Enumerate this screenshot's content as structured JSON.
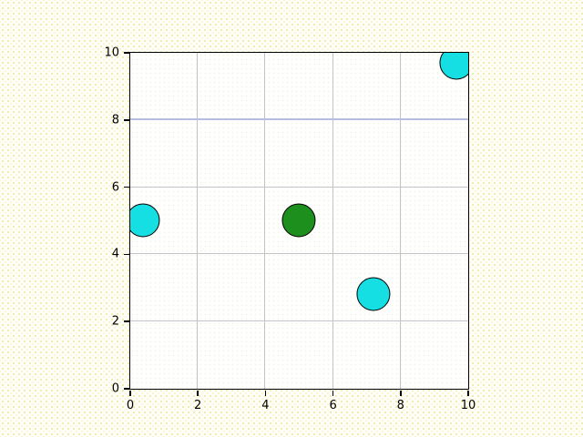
{
  "figure": {
    "background_color": "#fbfbe9",
    "axes_background_color": "#fffffe",
    "spine_color": "#000000",
    "grid_color": "#c3c3c8",
    "tick_label_color": "#000000"
  },
  "chart_data": {
    "type": "scatter",
    "title": "",
    "xlabel": "",
    "ylabel": "",
    "xlim": [
      0,
      10
    ],
    "ylim": [
      0,
      10
    ],
    "xticks": [
      "0",
      "2",
      "4",
      "6",
      "8",
      "10"
    ],
    "yticks": [
      "0",
      "2",
      "4",
      "6",
      "8",
      "10"
    ],
    "xtick_values": [
      0,
      2,
      4,
      6,
      8,
      10
    ],
    "ytick_values": [
      0,
      2,
      4,
      6,
      8,
      10
    ],
    "grid": true,
    "legend": false,
    "reference_line": {
      "axis": "y",
      "value": 8,
      "color": "#b9bce2",
      "width": 2
    },
    "point_radius_data_units": 0.5,
    "points": [
      {
        "x": 0.4,
        "y": 5.0,
        "fill": "#15dfe2",
        "edge": "#000000",
        "label": "cyan-circle"
      },
      {
        "x": 5.0,
        "y": 5.0,
        "fill": "#1d8f1d",
        "edge": "#000000",
        "label": "green-circle"
      },
      {
        "x": 7.2,
        "y": 2.8,
        "fill": "#15dfe2",
        "edge": "#000000",
        "label": "cyan-circle"
      },
      {
        "x": 9.65,
        "y": 9.7,
        "fill": "#15dfe2",
        "edge": "#000000",
        "label": "cyan-circle"
      }
    ]
  }
}
